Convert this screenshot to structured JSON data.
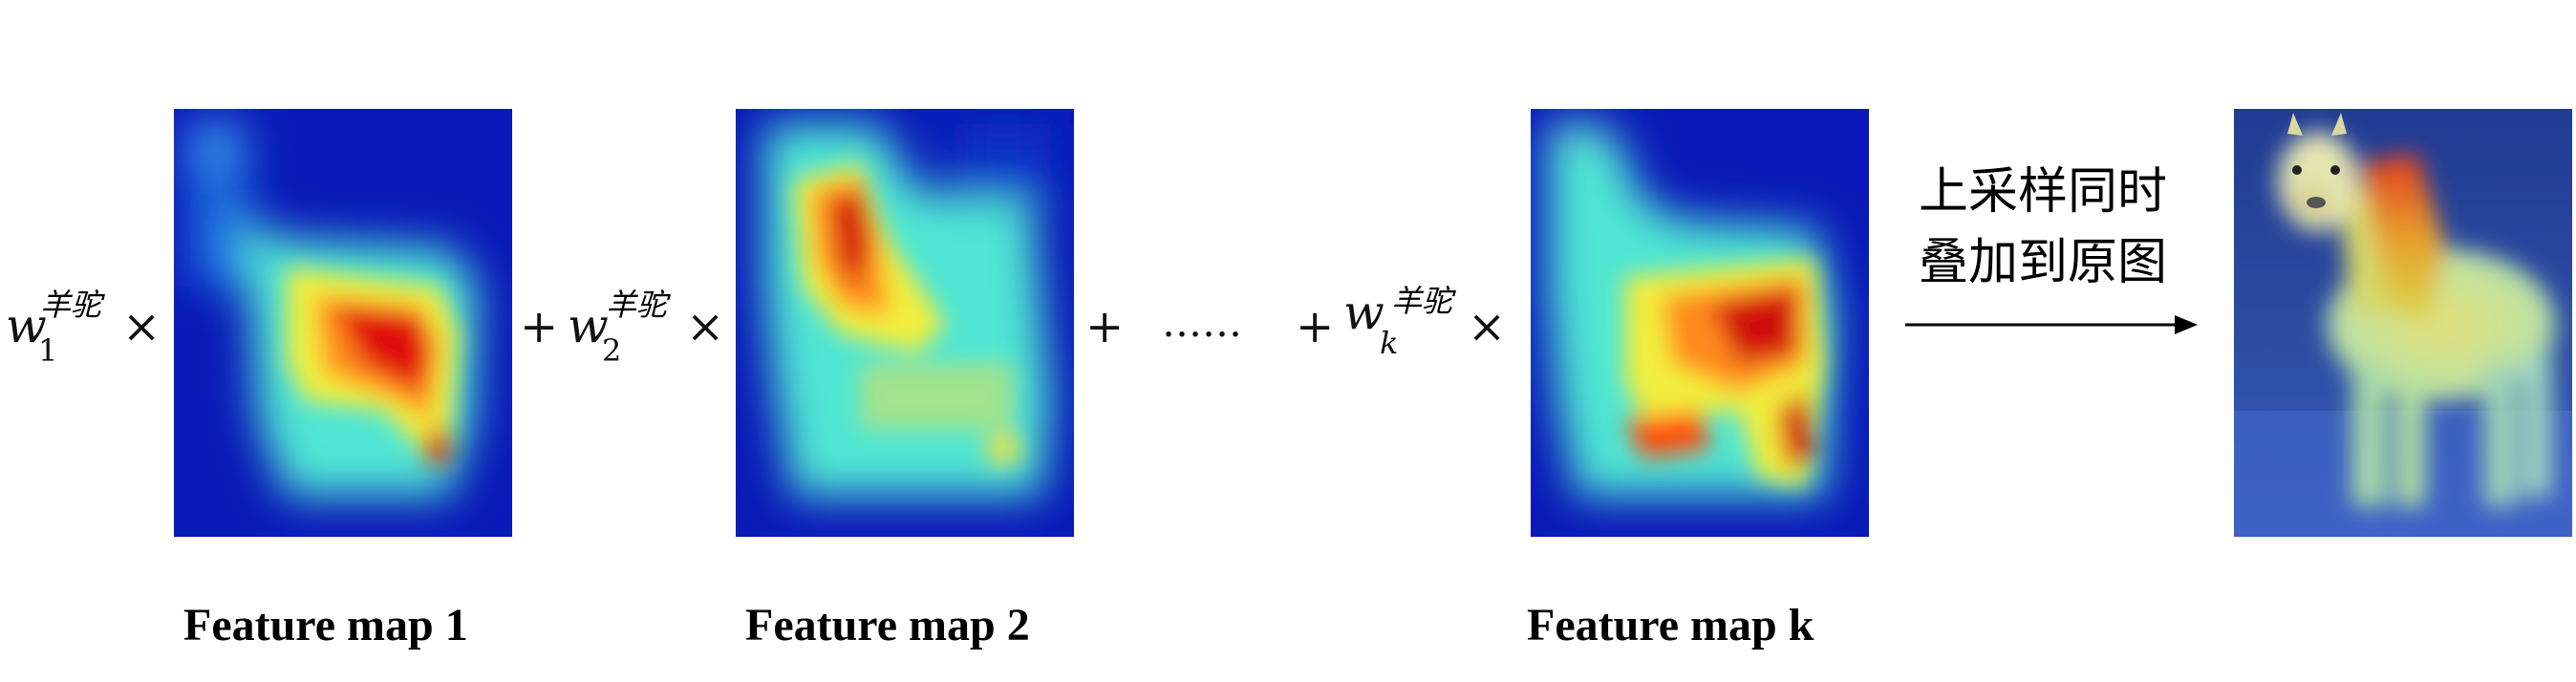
{
  "terms": [
    {
      "weight_base": "w",
      "weight_subscript": "1",
      "weight_superscript": "羊驼",
      "times": "×",
      "map_label": "Feature map 1"
    },
    {
      "plus": "+",
      "weight_base": "w",
      "weight_subscript": "2",
      "weight_superscript": "羊驼",
      "times": "×",
      "map_label": "Feature map 2"
    },
    {
      "plus": "+",
      "weight_base": "w",
      "weight_subscript": "k",
      "weight_superscript": "羊驼",
      "times": "×",
      "map_label": "Feature map k"
    }
  ],
  "ellipsis": {
    "plus": "+",
    "dots": "……"
  },
  "operation": {
    "line1": "上采样同时",
    "line2": "叠加到原图"
  },
  "colors": {
    "arrow": "#000000",
    "heat_low": "#0a1ab8",
    "heat_mid": "#4fe6d4",
    "heat_high": "#d40000"
  }
}
